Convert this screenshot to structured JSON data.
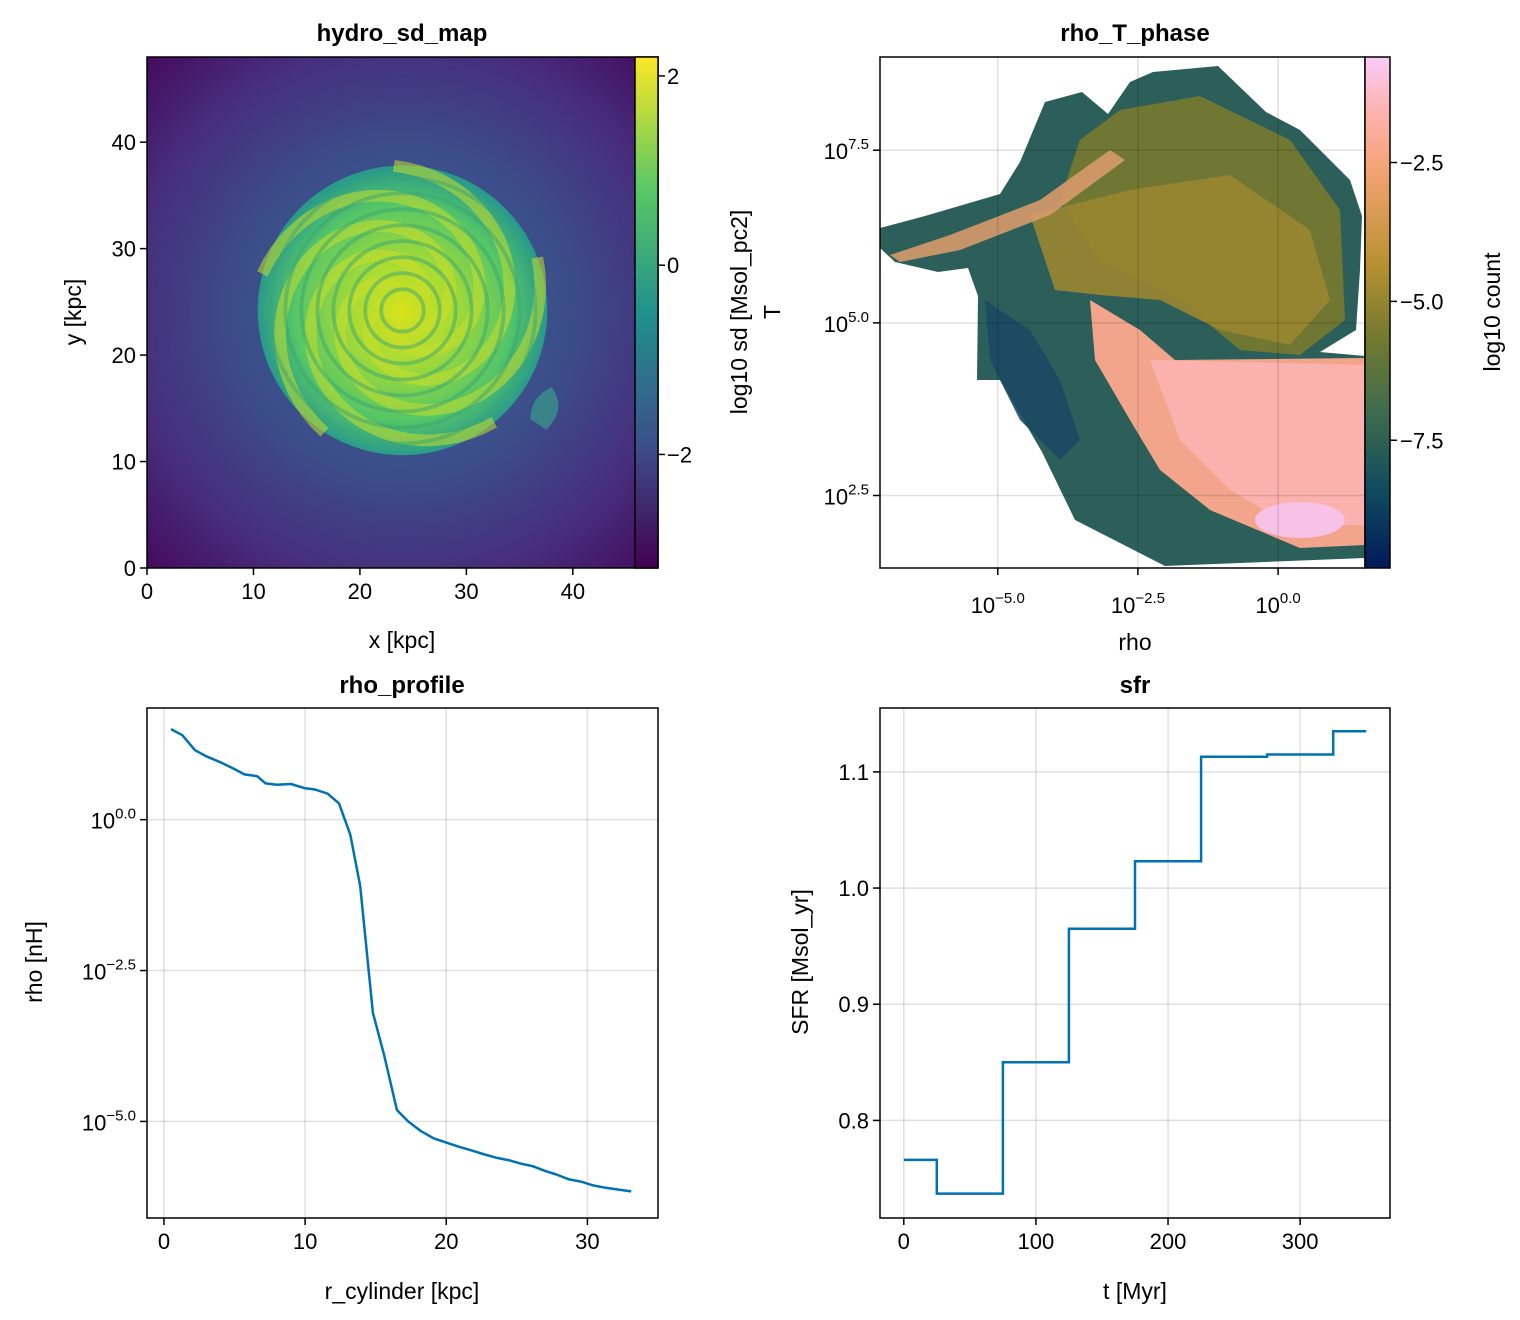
{
  "chart_data": [
    {
      "type": "heatmap",
      "title": "hydro_sd_map",
      "xlabel": "x [kpc]",
      "ylabel": "y [kpc]",
      "xlim": [
        0,
        48
      ],
      "ylim": [
        0,
        48
      ],
      "xticks": [
        0,
        10,
        20,
        30,
        40
      ],
      "yticks": [
        0,
        10,
        20,
        30,
        40
      ],
      "colormap": "viridis",
      "colorbar": {
        "label": "log10 sd [Msol_pc2]",
        "range": [
          -3.2,
          2.2
        ],
        "ticks": [
          2,
          0,
          -2
        ]
      },
      "features": {
        "disk_center": [
          24,
          24
        ],
        "disk_radius": 13.5,
        "spiral_arms": true,
        "halo_radius": 20
      }
    },
    {
      "type": "heatmap",
      "title": "rho_T_phase",
      "xlabel": "rho",
      "ylabel": "T",
      "xscale": "log",
      "yscale": "log",
      "xlim_log10": [
        -7.1,
        1.55
      ],
      "ylim_log10": [
        1.45,
        8.85
      ],
      "xticks": [
        {
          "base": "10",
          "exp": "−5.0"
        },
        {
          "base": "10",
          "exp": "−2.5"
        },
        {
          "base": "10",
          "exp": "0.0"
        }
      ],
      "yticks": [
        {
          "base": "10",
          "exp": "7.5"
        },
        {
          "base": "10",
          "exp": "5.0"
        },
        {
          "base": "10",
          "exp": "2.5"
        }
      ],
      "colormap": "batlow",
      "colorbar": {
        "label": "log10 count",
        "range": [
          -9.8,
          -0.6
        ],
        "ticks": [
          "−2.5",
          "−5.0",
          "−7.5"
        ]
      }
    },
    {
      "type": "line",
      "title": "rho_profile",
      "xlabel": "r_cylinder [kpc]",
      "ylabel": "rho [nH]",
      "yscale": "log",
      "xlim": [
        -1.2,
        35
      ],
      "ylim_log10": [
        -6.6,
        1.85
      ],
      "xticks": [
        "0",
        "10",
        "20",
        "30"
      ],
      "yticks": [
        {
          "base": "10",
          "exp": "0.0"
        },
        {
          "base": "10",
          "exp": "−2.5"
        },
        {
          "base": "10",
          "exp": "−5.0"
        }
      ],
      "color": "#0072b2",
      "x": [
        0.5,
        1.3,
        2.2,
        3.0,
        4.0,
        4.9,
        5.7,
        6.6,
        7.2,
        8.0,
        9.0,
        10.0,
        10.7,
        11.6,
        12.4,
        13.2,
        13.9,
        14.8,
        15.6,
        16.5,
        17.3,
        18.2,
        19.1,
        20.0,
        20.9,
        21.8,
        22.6,
        23.5,
        24.4,
        25.3,
        26.1,
        27.0,
        27.8,
        28.7,
        29.6,
        30.4,
        31.3,
        32.2,
        33.1
      ]
    },
    {
      "type": "line",
      "title": "sfr",
      "xlabel": "t [Myr]",
      "ylabel": "SFR [Msol_yr]",
      "xlim": [
        -18,
        368
      ],
      "ylim": [
        0.716,
        1.155
      ],
      "xticks": [
        "0",
        "100",
        "200",
        "300"
      ],
      "yticks": [
        "0.8",
        "0.9",
        "1.0",
        "1.1"
      ],
      "step": "mid",
      "color": "#0072b2",
      "x": [
        0,
        50,
        100,
        150,
        200,
        250,
        300,
        350
      ],
      "y": [
        0.766,
        0.737,
        0.85,
        0.965,
        1.023,
        1.113,
        1.115,
        1.135
      ]
    }
  ],
  "rho_profile_log10_y": [
    1.5,
    1.4,
    1.15,
    1.05,
    0.95,
    0.85,
    0.75,
    0.72,
    0.6,
    0.58,
    0.59,
    0.52,
    0.5,
    0.43,
    0.27,
    -0.25,
    -1.1,
    -3.2,
    -3.9,
    -4.81,
    -5.0,
    -5.16,
    -5.28,
    -5.35,
    -5.42,
    -5.48,
    -5.54,
    -5.6,
    -5.64,
    -5.7,
    -5.74,
    -5.82,
    -5.88,
    -5.96,
    -6.0,
    -6.06,
    -6.1,
    -6.13,
    -6.16
  ]
}
